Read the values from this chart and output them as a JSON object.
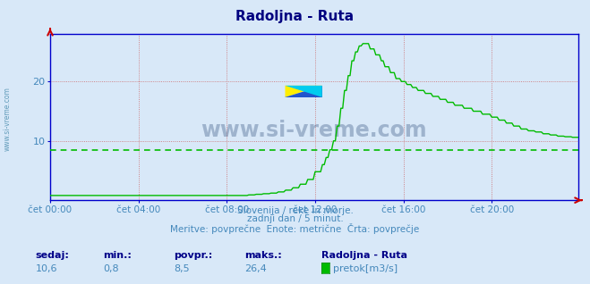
{
  "title": "Radoljna - Ruta",
  "title_color": "#000080",
  "bg_color": "#d8e8f8",
  "plot_bg_color": "#d8e8f8",
  "line_color": "#00bb00",
  "avg_value": 8.5,
  "y_min": 0,
  "y_max": 28,
  "x_ticks_labels": [
    "čet 00:00",
    "čet 04:00",
    "čet 08:00",
    "čet 12:00",
    "čet 16:00",
    "čet 20:00"
  ],
  "x_ticks_pos": [
    0,
    48,
    96,
    144,
    192,
    240
  ],
  "y_ticks": [
    10,
    20
  ],
  "subtitle1": "Slovenija / reke in morje.",
  "subtitle2": "zadnji dan / 5 minut.",
  "subtitle3": "Meritve: povprečne  Enote: metrične  Črta: povprečje",
  "footer_label1": "sedaj:",
  "footer_label2": "min.:",
  "footer_label3": "povpr.:",
  "footer_label4": "maks.:",
  "footer_val1": "10,6",
  "footer_val2": "0,8",
  "footer_val3": "8,5",
  "footer_val4": "26,4",
  "footer_station": "Radoljna - Ruta",
  "footer_legend": "pretok[m3/s]",
  "watermark": "www.si-vreme.com",
  "total_points": 288,
  "axis_color": "#0000cc",
  "grid_color": "#cc8888",
  "text_color": "#4488bb",
  "label_color": "#000088"
}
